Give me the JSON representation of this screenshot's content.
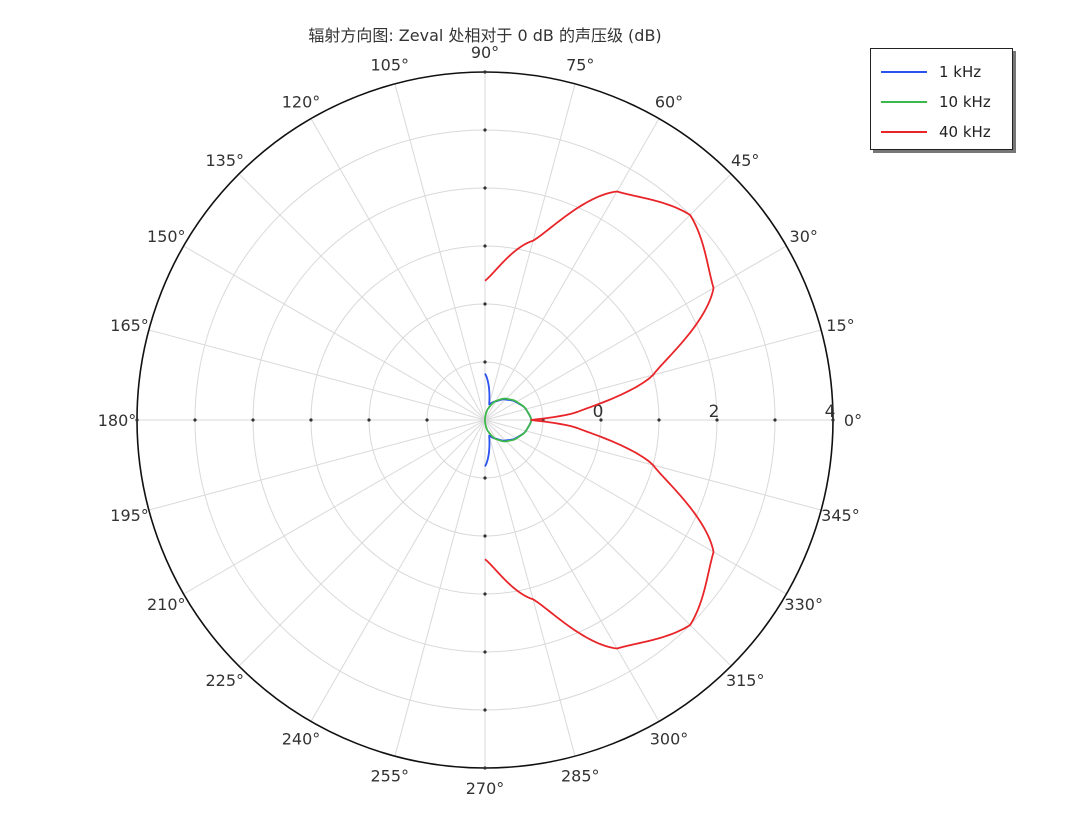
{
  "chart_data": {
    "type": "polar-line",
    "title": "辐射方向图: Zeval 处相对于 0 dB 的声压级 (dB)",
    "angle_ticks": [
      "0°",
      "15°",
      "30°",
      "45°",
      "60°",
      "75°",
      "90°",
      "105°",
      "120°",
      "135°",
      "150°",
      "165°",
      "180°",
      "195°",
      "210°",
      "225°",
      "240°",
      "255°",
      "270°",
      "285°",
      "300°",
      "315°",
      "330°",
      "345°"
    ],
    "angle_tick_degrees": [
      0,
      15,
      30,
      45,
      60,
      75,
      90,
      105,
      120,
      135,
      150,
      165,
      180,
      195,
      210,
      225,
      240,
      255,
      270,
      285,
      300,
      315,
      330,
      345
    ],
    "radial_ticks": [
      "0",
      "2",
      "4"
    ],
    "radial_tick_values": [
      0,
      2,
      4
    ],
    "r_range": [
      -2,
      4
    ],
    "grid": true,
    "legend_position": "top-right",
    "series": [
      {
        "name": "1 kHz",
        "color": "#2a52f0",
        "theta": [
          0,
          15,
          30,
          45,
          60,
          75,
          90
        ],
        "r": [
          -1.2,
          -1.27,
          -1.38,
          -1.5,
          -1.63,
          -1.72,
          -1.2
        ]
      },
      {
        "name": "10 kHz",
        "color": "#3cb84a",
        "theta": [
          0,
          15,
          30,
          45,
          60,
          75,
          90
        ],
        "r": [
          -1.2,
          -1.27,
          -1.37,
          -1.48,
          -1.62,
          -1.8,
          -2.0
        ]
      },
      {
        "name": "40 kHz",
        "color": "#e8262a",
        "theta": [
          0,
          5,
          15,
          30,
          45,
          60,
          75,
          90
        ],
        "r": [
          -1.2,
          -0.4,
          1.0,
          2.55,
          3.0,
          2.55,
          1.2,
          0.4
        ]
      }
    ]
  },
  "legend": {
    "items": [
      {
        "label": "1 kHz",
        "color": "#2a52f0"
      },
      {
        "label": "10 kHz",
        "color": "#3cb84a"
      },
      {
        "label": "40 kHz",
        "color": "#e8262a"
      }
    ]
  }
}
